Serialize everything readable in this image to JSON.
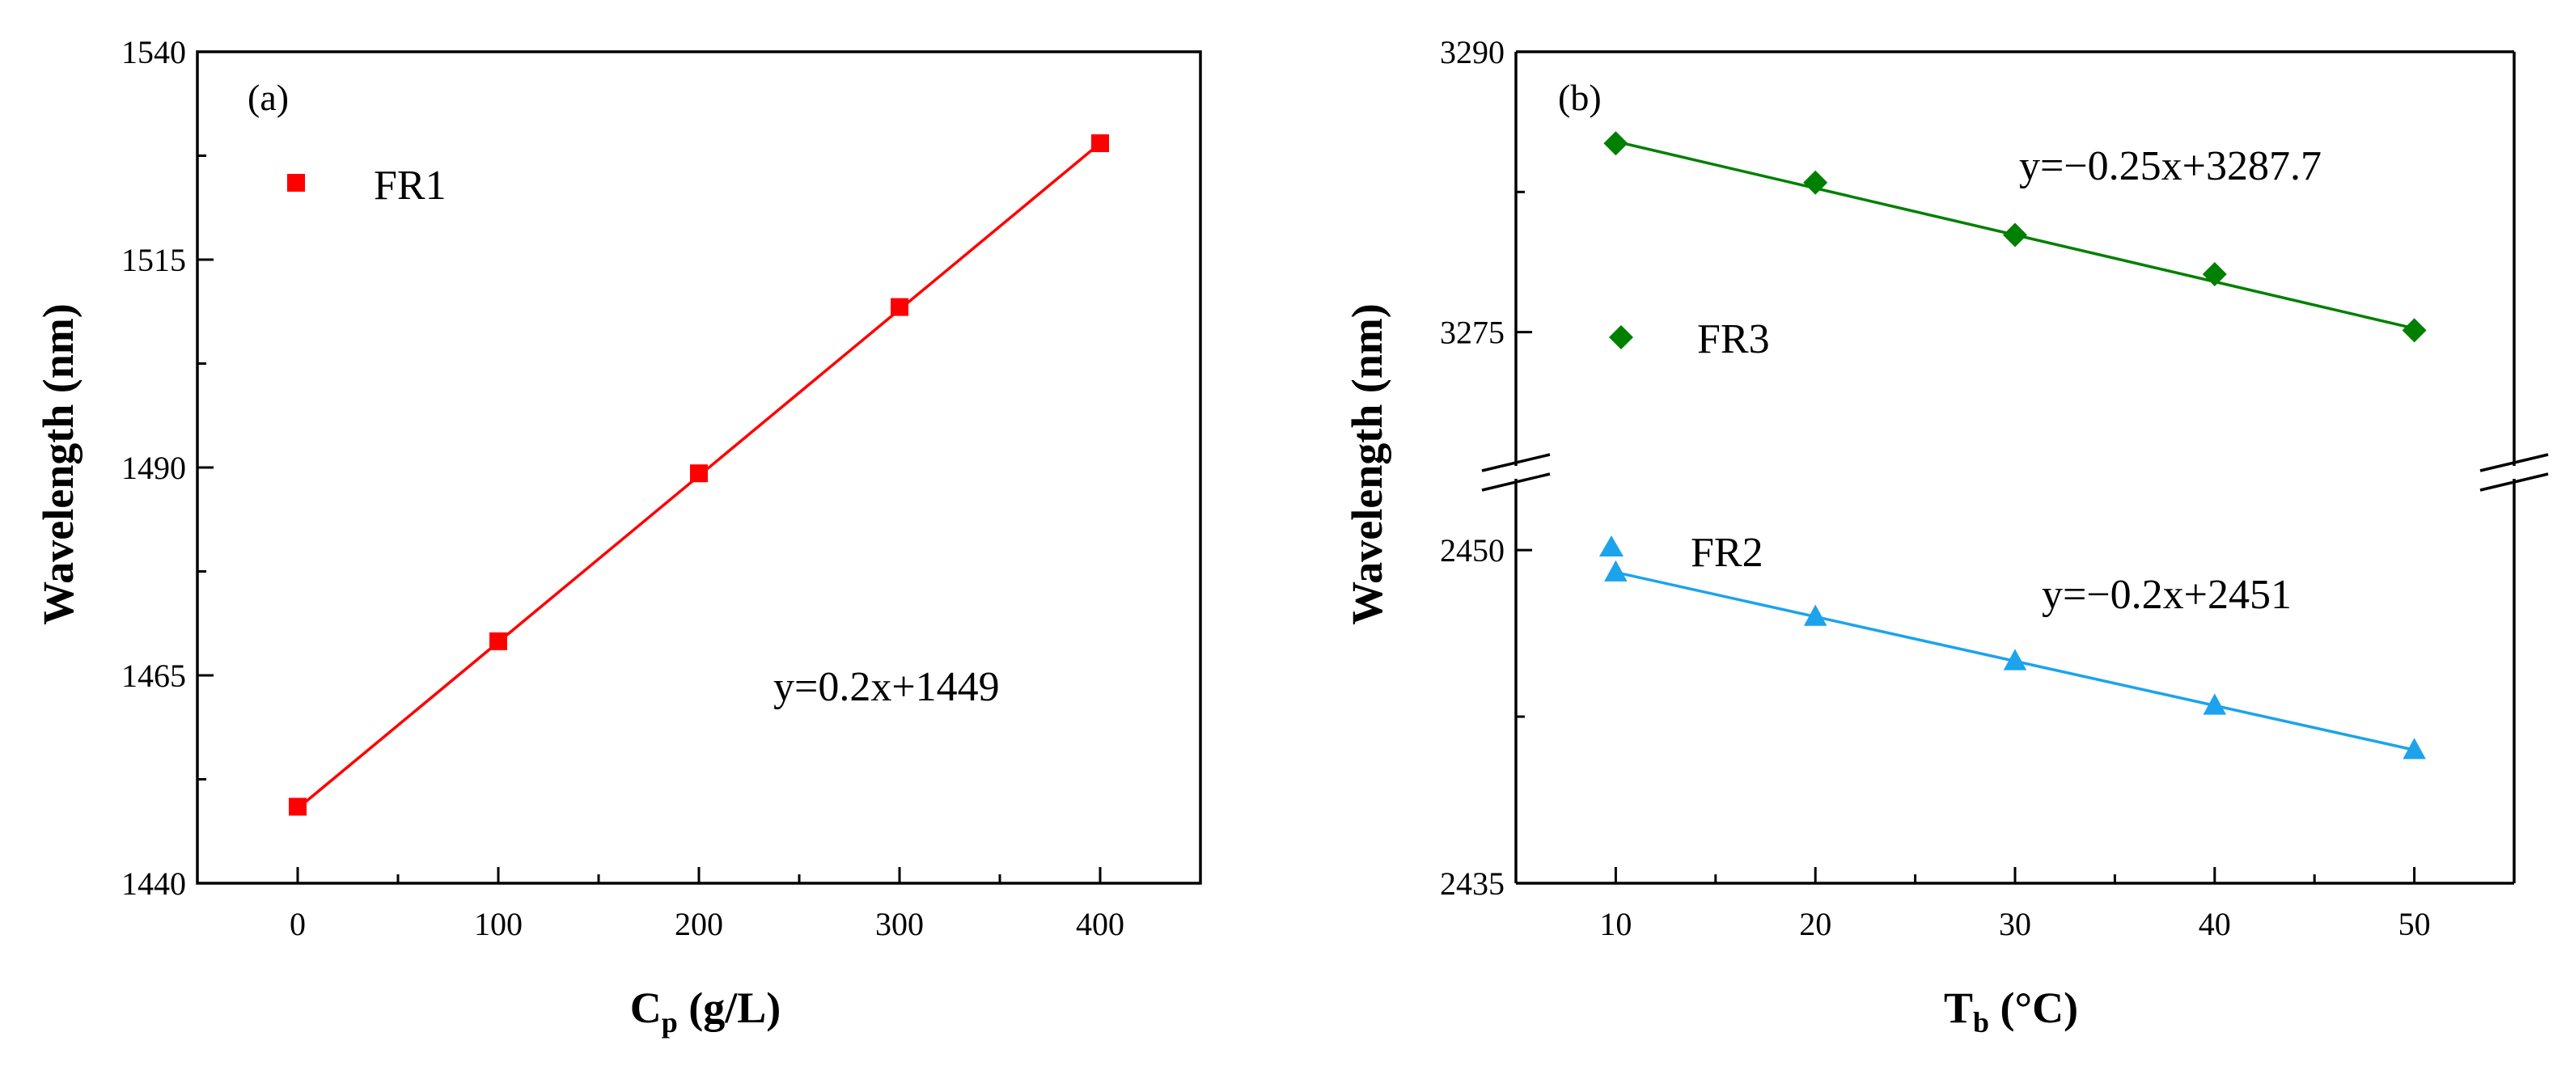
{
  "chart_data": [
    {
      "type": "line",
      "panel_label": "(a)",
      "title": "",
      "xlabel": "C",
      "xlabel_sub": "p",
      "xlabel_unit": " (g/L)",
      "ylabel": "Wavelength (nm)",
      "xlim": [
        -50,
        450
      ],
      "ylim": [
        1440,
        1540
      ],
      "xticks": [
        0,
        100,
        200,
        300,
        400
      ],
      "yticks": [
        1440,
        1465,
        1490,
        1515,
        1540
      ],
      "grid": false,
      "legend_position": "top-left",
      "series": [
        {
          "name": "FR1",
          "color": "#ff0000",
          "marker": "square",
          "x": [
            0,
            100,
            200,
            300,
            400
          ],
          "y": [
            1449.2,
            1469.1,
            1489.3,
            1509.3,
            1529.0
          ],
          "fit_label": "y=0.2x+1449",
          "fit": {
            "slope": 0.2,
            "intercept": 1449
          }
        }
      ]
    },
    {
      "type": "line",
      "panel_label": "(b)",
      "title": "",
      "xlabel": "T",
      "xlabel_sub": "b",
      "xlabel_unit": " (°C)",
      "ylabel": "Wavelength (nm)",
      "xlim": [
        5,
        55
      ],
      "xticks": [
        10,
        20,
        30,
        40,
        50
      ],
      "broken_axis": true,
      "grid": false,
      "upper_segment": {
        "ylim": [
          3267.5,
          3290
        ],
        "yticks": [
          3275,
          3290
        ],
        "minor_ticks": [
          3282.5
        ]
      },
      "lower_segment": {
        "ylim": [
          2435,
          2453.5
        ],
        "yticks": [
          2435,
          2450
        ],
        "minor_ticks": [
          2442.5
        ]
      },
      "series": [
        {
          "name": "FR3",
          "color": "#008000",
          "marker": "diamond",
          "segment": "upper",
          "x": [
            10,
            20,
            30,
            40,
            50
          ],
          "y": [
            3285.1,
            3283.0,
            3280.2,
            3278.1,
            3275.1
          ],
          "fit_label": "y=−0.25x+3287.7",
          "fit": {
            "slope": -0.25,
            "intercept": 3287.7
          }
        },
        {
          "name": "FR2",
          "color": "#1ca3ec",
          "marker": "triangle",
          "segment": "lower",
          "x": [
            10,
            20,
            30,
            40,
            50
          ],
          "y": [
            2449.0,
            2447.0,
            2445.0,
            2443.0,
            2441.0
          ],
          "fit_label": "y=−0.2x+2451",
          "fit": {
            "slope": -0.2,
            "intercept": 2451
          }
        }
      ]
    }
  ]
}
